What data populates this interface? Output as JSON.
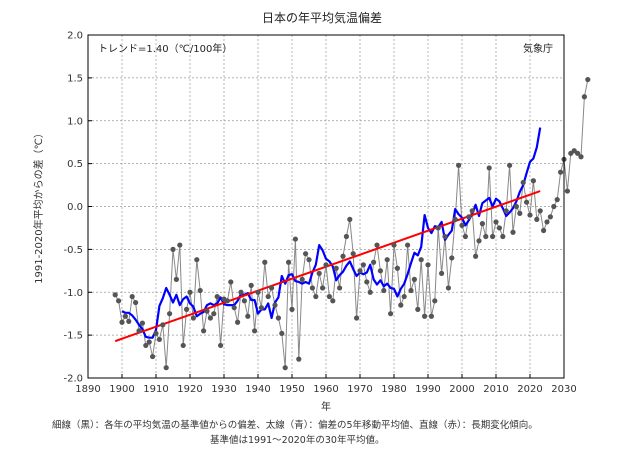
{
  "chart_data": {
    "type": "line",
    "title": "日本の年平均気温偏差",
    "xlabel": "年",
    "ylabel": "1991-2020年平均からの差（℃）",
    "trend_label": "トレンド=1.40（℃/100年）",
    "agency": "気象庁",
    "note_line1": "細線（黒）：各年の平均気温の基準値からの偏差、太線（青）：偏差の5年移動平均値、直線（赤）：長期変化傾向。",
    "note_line2": "基準値は1991〜2020年の30年平均値。",
    "xlim": [
      1890,
      2030
    ],
    "ylim": [
      -2.0,
      2.0
    ],
    "x_ticks": [
      1890,
      1900,
      1910,
      1920,
      1930,
      1940,
      1950,
      1960,
      1970,
      1980,
      1990,
      2000,
      2010,
      2020,
      2030
    ],
    "y_ticks": [
      "2.0",
      "1.5",
      "1.0",
      "0.5",
      "0.0",
      "-0.5",
      "-1.0",
      "-1.5",
      "-2.0"
    ],
    "grid": true,
    "colors": {
      "annual": "#888888",
      "marker": "#555555",
      "moving_avg": "#0000ff",
      "trend": "#ff0000"
    },
    "annual": {
      "x_start": 1898,
      "values": [
        -1.03,
        -1.1,
        -1.35,
        -1.28,
        -1.34,
        -1.05,
        -1.12,
        -1.45,
        -1.36,
        -1.62,
        -1.58,
        -1.75,
        -1.48,
        -1.55,
        -1.38,
        -1.88,
        -1.25,
        -0.5,
        -0.85,
        -0.45,
        -1.62,
        -1.2,
        -1.0,
        -1.3,
        -0.62,
        -0.98,
        -1.45,
        -1.22,
        -1.3,
        -1.25,
        -1.05,
        -1.62,
        -1.08,
        -1.1,
        -0.88,
        -1.18,
        -1.35,
        -1.0,
        -1.1,
        -1.28,
        -0.92,
        -1.45,
        -1.0,
        -1.18,
        -0.65,
        -1.05,
        -0.95,
        -1.15,
        -1.3,
        -1.48,
        -1.88,
        -0.65,
        -1.2,
        -0.38,
        -1.78,
        -0.85,
        -0.55,
        -0.62,
        -0.95,
        -1.05,
        -0.78,
        -0.95,
        -0.68,
        -1.05,
        -1.1,
        -0.72,
        -0.95,
        -0.58,
        -0.35,
        -0.15,
        -0.55,
        -1.3,
        -0.75,
        -0.68,
        -0.88,
        -1.0,
        -0.65,
        -0.45,
        -0.75,
        -0.98,
        -0.62,
        -1.25,
        -0.45,
        -0.72,
        -1.15,
        -1.05,
        -0.45,
        -0.98,
        -0.85,
        -1.2,
        -0.62,
        -1.28,
        -0.68,
        -1.28,
        -1.1,
        -0.25,
        -0.78,
        -0.35,
        -0.95,
        -0.6,
        -0.15,
        0.48,
        -0.22,
        -0.35,
        -0.12,
        -0.05,
        -0.58,
        -0.4,
        -0.2,
        -0.35,
        0.45,
        -0.35,
        -0.18,
        -0.25,
        -0.35,
        -0.05,
        0.48,
        -0.3,
        0.0,
        -0.08,
        0.28,
        0.05,
        -0.1,
        0.3,
        -0.15,
        -0.05,
        -0.28,
        -0.18,
        -0.12,
        0.0,
        0.08,
        0.4,
        0.55,
        0.18,
        0.62,
        0.65,
        0.62,
        0.58,
        1.28,
        1.48
      ]
    },
    "moving_avg": {
      "x_start": 1900,
      "values": [
        -1.22,
        -1.24,
        -1.24,
        -1.27,
        -1.32,
        -1.38,
        -1.43,
        -1.52,
        -1.53,
        -1.53,
        -1.44,
        -1.16,
        -1.07,
        -0.95,
        -1.03,
        -1.12,
        -1.03,
        -1.15,
        -1.08,
        -1.05,
        -1.13,
        -1.17,
        -1.28,
        -1.25,
        -1.23,
        -1.15,
        -1.13,
        -1.15,
        -1.13,
        -1.06,
        -1.14,
        -1.15,
        -1.15,
        -1.15,
        -1.1,
        -1.02,
        -1.03,
        -1.01,
        -1.09,
        -1.09,
        -1.25,
        -1.2,
        -1.2,
        -1.13,
        -1.3,
        -1.12,
        -1.06,
        -0.81,
        -0.9,
        -0.8,
        -0.79,
        -0.87,
        -0.88,
        -0.9,
        -0.88,
        -0.9,
        -0.77,
        -0.68,
        -0.45,
        -0.51,
        -0.61,
        -0.64,
        -0.7,
        -0.86,
        -0.8,
        -0.76,
        -0.69,
        -0.64,
        -0.73,
        -0.81,
        -0.77,
        -0.79,
        -0.77,
        -0.68,
        -0.85,
        -0.91,
        -0.86,
        -0.93,
        -0.9,
        -0.95,
        -0.96,
        -1.05,
        -0.96,
        -0.9,
        -0.79,
        -0.66,
        -0.54,
        -0.57,
        -0.47,
        -0.1,
        -0.25,
        -0.31,
        -0.23,
        -0.24,
        -0.18,
        -0.39,
        -0.33,
        -0.28,
        -0.03,
        -0.09,
        -0.13,
        -0.22,
        -0.16,
        -0.09,
        0.02,
        -0.11,
        0.04,
        0.07,
        0.1,
        0.0,
        0.09,
        0.06,
        -0.02,
        -0.11,
        -0.07,
        -0.02,
        0.06,
        0.17,
        0.25,
        0.39,
        0.52,
        0.56,
        0.69,
        0.92
      ]
    },
    "trend": {
      "x": [
        1898,
        2023
      ],
      "y": [
        -1.57,
        0.18
      ],
      "slope_per_100yr": 1.4
    }
  }
}
